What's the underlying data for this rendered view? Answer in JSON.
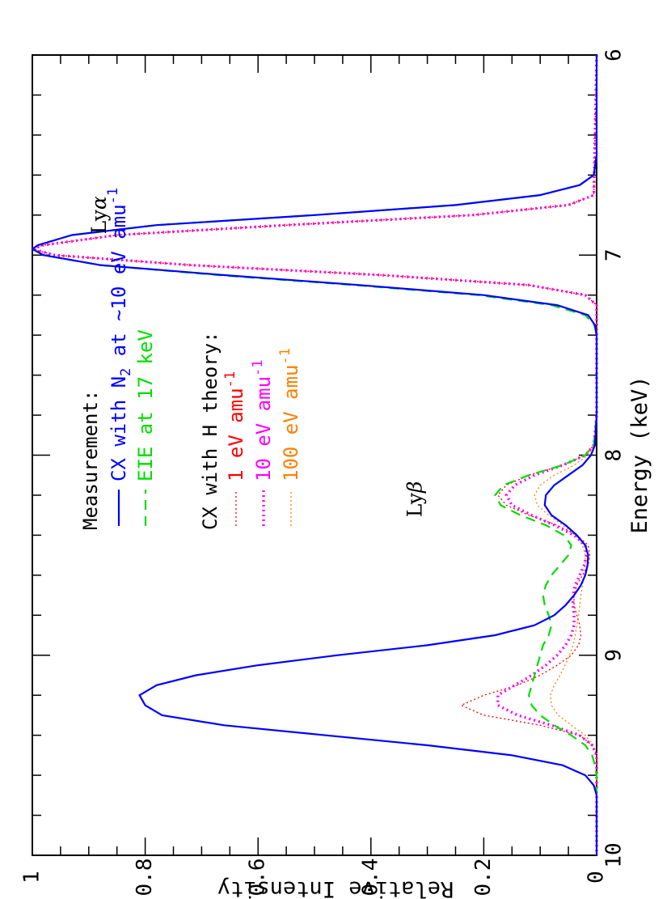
{
  "chart_data": {
    "type": "line",
    "xlabel": "Energy (keV)",
    "ylabel": "Relative Intensity",
    "xlim": [
      6,
      10
    ],
    "ylim": [
      0,
      1
    ],
    "x_ticks": [
      "6",
      "7",
      "8",
      "9",
      "10"
    ],
    "y_ticks": [
      "0",
      "0.2",
      "0.4",
      "0.6",
      "0.8",
      "1"
    ],
    "grid": false,
    "legend": {
      "measurement_heading": "Measurement:",
      "theory_heading": "CX with H theory:",
      "entries": [
        {
          "key": "cx_n2",
          "text": "CX with N",
          "sub": "2",
          "rest": " at ~10 eV amu",
          "sup": "-1",
          "color": "#0000ff",
          "style": "solid"
        },
        {
          "key": "eie",
          "text": "EIE at 17 keV",
          "color": "#00dd00",
          "style": "dashed"
        },
        {
          "key": "th1",
          "prefix": "1 eV",
          "text": " amu",
          "sup": "-1",
          "color": "#ff0000",
          "style": "dotted-thin"
        },
        {
          "key": "th10",
          "prefix": "10 eV",
          "text": " amu",
          "sup": "-1",
          "color": "#ff00ff",
          "style": "dotted-thick"
        },
        {
          "key": "th100",
          "prefix": "100 eV",
          "text": " amu",
          "sup": "-1",
          "color": "#ff8000",
          "style": "dotted-thin"
        }
      ]
    },
    "annotations": [
      {
        "text": "Ly",
        "greek": "α",
        "x": 6.8,
        "y": 0.88
      },
      {
        "text": "Ly",
        "greek": "β",
        "x": 8.22,
        "y": 0.32
      }
    ],
    "series": [
      {
        "name": "CX with N2 at ~10 eV amu-1",
        "color": "#0000ff",
        "style": "solid",
        "x": [
          6.0,
          6.5,
          6.6,
          6.65,
          6.7,
          6.75,
          6.8,
          6.85,
          6.9,
          6.95,
          6.97,
          7.0,
          7.05,
          7.1,
          7.15,
          7.2,
          7.25,
          7.3,
          7.35,
          7.4,
          7.8,
          7.95,
          8.0,
          8.05,
          8.1,
          8.15,
          8.2,
          8.25,
          8.3,
          8.35,
          8.4,
          8.45,
          8.5,
          8.55,
          8.6,
          8.65,
          8.7,
          8.75,
          8.8,
          8.85,
          8.9,
          8.95,
          9.0,
          9.05,
          9.1,
          9.15,
          9.2,
          9.25,
          9.3,
          9.35,
          9.4,
          9.45,
          9.5,
          9.55,
          9.6,
          9.65,
          9.7,
          10.0
        ],
        "y": [
          0.0,
          0.0,
          0.005,
          0.03,
          0.1,
          0.25,
          0.5,
          0.78,
          0.93,
          0.99,
          1.0,
          0.98,
          0.88,
          0.66,
          0.42,
          0.2,
          0.07,
          0.015,
          0.003,
          0.0,
          0.0,
          0.003,
          0.01,
          0.025,
          0.05,
          0.075,
          0.09,
          0.092,
          0.08,
          0.055,
          0.035,
          0.02,
          0.015,
          0.016,
          0.02,
          0.028,
          0.04,
          0.055,
          0.075,
          0.11,
          0.18,
          0.3,
          0.46,
          0.6,
          0.71,
          0.78,
          0.81,
          0.8,
          0.77,
          0.66,
          0.48,
          0.3,
          0.15,
          0.06,
          0.02,
          0.005,
          0.0,
          0.0
        ]
      },
      {
        "name": "EIE at 17 keV",
        "color": "#00dd00",
        "style": "dashed",
        "x": [
          6.0,
          6.5,
          6.6,
          6.65,
          6.7,
          6.75,
          6.8,
          6.85,
          6.9,
          6.95,
          6.97,
          7.0,
          7.05,
          7.1,
          7.15,
          7.2,
          7.25,
          7.3,
          7.35,
          7.4,
          7.8,
          7.95,
          8.0,
          8.05,
          8.1,
          8.15,
          8.2,
          8.25,
          8.3,
          8.35,
          8.4,
          8.45,
          8.5,
          8.55,
          8.6,
          8.65,
          8.7,
          8.75,
          8.8,
          8.85,
          8.9,
          8.95,
          9.0,
          9.05,
          9.1,
          9.15,
          9.2,
          9.25,
          9.3,
          9.35,
          9.4,
          9.45,
          9.5,
          9.55,
          9.6,
          10.0
        ],
        "y": [
          0.0,
          0.0,
          0.005,
          0.03,
          0.1,
          0.25,
          0.5,
          0.78,
          0.93,
          0.99,
          1.0,
          0.98,
          0.88,
          0.67,
          0.43,
          0.21,
          0.08,
          0.02,
          0.004,
          0.0,
          0.0,
          0.005,
          0.02,
          0.06,
          0.12,
          0.165,
          0.18,
          0.17,
          0.135,
          0.09,
          0.058,
          0.045,
          0.05,
          0.065,
          0.08,
          0.09,
          0.095,
          0.092,
          0.085,
          0.08,
          0.085,
          0.095,
          0.1,
          0.105,
          0.11,
          0.115,
          0.12,
          0.115,
          0.1,
          0.075,
          0.045,
          0.02,
          0.008,
          0.003,
          0.0,
          0.0
        ]
      },
      {
        "name": "1 eV amu-1",
        "color": "#ff0000",
        "style": "dotted-thin",
        "x": [
          6.0,
          6.7,
          6.75,
          6.8,
          6.85,
          6.9,
          6.95,
          6.97,
          7.0,
          7.05,
          7.1,
          7.15,
          7.2,
          7.25,
          7.8,
          7.95,
          8.0,
          8.05,
          8.1,
          8.15,
          8.2,
          8.25,
          8.3,
          8.35,
          8.4,
          8.45,
          8.5,
          8.55,
          8.6,
          8.65,
          8.7,
          8.75,
          8.8,
          8.85,
          8.9,
          8.95,
          9.0,
          9.05,
          9.1,
          9.15,
          9.2,
          9.25,
          9.3,
          9.35,
          9.4,
          9.45,
          9.5,
          10.0
        ],
        "y": [
          0.0,
          0.005,
          0.05,
          0.22,
          0.55,
          0.85,
          0.98,
          1.0,
          0.96,
          0.72,
          0.38,
          0.12,
          0.02,
          0.0,
          0.0,
          0.005,
          0.02,
          0.06,
          0.12,
          0.16,
          0.175,
          0.16,
          0.12,
          0.07,
          0.035,
          0.015,
          0.012,
          0.015,
          0.025,
          0.035,
          0.04,
          0.04,
          0.035,
          0.03,
          0.028,
          0.032,
          0.045,
          0.07,
          0.1,
          0.14,
          0.2,
          0.24,
          0.2,
          0.1,
          0.03,
          0.008,
          0.0,
          0.0
        ]
      },
      {
        "name": "10 eV amu-1",
        "color": "#ff00ff",
        "style": "dotted-thick",
        "x": [
          6.0,
          6.7,
          6.75,
          6.8,
          6.85,
          6.9,
          6.95,
          6.97,
          7.0,
          7.05,
          7.1,
          7.15,
          7.2,
          7.25,
          7.8,
          7.95,
          8.0,
          8.05,
          8.1,
          8.15,
          8.2,
          8.25,
          8.3,
          8.35,
          8.4,
          8.45,
          8.5,
          8.55,
          8.6,
          8.65,
          8.7,
          8.75,
          8.8,
          8.85,
          8.9,
          8.95,
          9.0,
          9.05,
          9.1,
          9.15,
          9.2,
          9.25,
          9.3,
          9.35,
          9.4,
          9.45,
          9.5,
          10.0
        ],
        "y": [
          0.0,
          0.005,
          0.05,
          0.22,
          0.55,
          0.85,
          0.98,
          1.0,
          0.96,
          0.72,
          0.38,
          0.12,
          0.02,
          0.0,
          0.0,
          0.005,
          0.02,
          0.06,
          0.11,
          0.145,
          0.16,
          0.15,
          0.115,
          0.075,
          0.04,
          0.02,
          0.018,
          0.022,
          0.03,
          0.038,
          0.042,
          0.042,
          0.04,
          0.04,
          0.045,
          0.055,
          0.07,
          0.09,
          0.115,
          0.145,
          0.175,
          0.175,
          0.14,
          0.08,
          0.03,
          0.008,
          0.0,
          0.0
        ]
      },
      {
        "name": "100 eV amu-1",
        "color": "#ff8000",
        "style": "dotted-thin",
        "x": [
          6.0,
          6.7,
          6.75,
          6.8,
          6.85,
          6.9,
          6.95,
          6.97,
          7.0,
          7.05,
          7.1,
          7.15,
          7.2,
          7.25,
          7.8,
          7.95,
          8.0,
          8.05,
          8.1,
          8.15,
          8.2,
          8.25,
          8.3,
          8.35,
          8.4,
          8.45,
          8.5,
          8.55,
          8.6,
          8.65,
          8.7,
          8.75,
          8.8,
          8.85,
          8.9,
          8.95,
          9.0,
          9.05,
          9.1,
          9.15,
          9.2,
          9.25,
          9.3,
          9.35,
          9.4,
          9.45,
          9.5,
          10.0
        ],
        "y": [
          0.0,
          0.005,
          0.05,
          0.22,
          0.55,
          0.85,
          0.98,
          1.0,
          0.96,
          0.72,
          0.38,
          0.12,
          0.02,
          0.0,
          0.0,
          0.004,
          0.015,
          0.04,
          0.075,
          0.1,
          0.11,
          0.105,
          0.085,
          0.06,
          0.038,
          0.025,
          0.02,
          0.02,
          0.022,
          0.025,
          0.028,
          0.03,
          0.032,
          0.035,
          0.038,
          0.042,
          0.048,
          0.056,
          0.065,
          0.075,
          0.082,
          0.08,
          0.068,
          0.045,
          0.02,
          0.006,
          0.0,
          0.0
        ]
      }
    ]
  }
}
